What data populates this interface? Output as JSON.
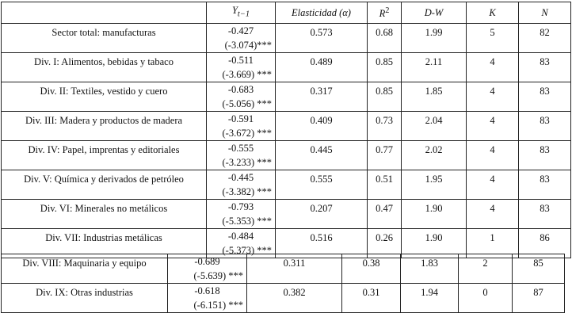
{
  "header": {
    "col0": "",
    "y_var": "Y",
    "y_sub": "t−1",
    "elasticity": "Elasticidad (α)",
    "r2_base": "R",
    "r2_sup": "2",
    "dw": "D-W",
    "k": "K",
    "n": "N"
  },
  "rows": [
    {
      "label": "Sector total: manufacturas",
      "coef": "-0.427",
      "t": "(-3.074)***",
      "elas": "0.573",
      "r2": "0.68",
      "dw": "1.99",
      "k": "5",
      "n": "82"
    },
    {
      "label": "Div. I: Alimentos, bebidas y tabaco",
      "coef": "-0.511",
      "t": "(-3.669) ***",
      "elas": "0.489",
      "r2": "0.85",
      "dw": "2.11",
      "k": "4",
      "n": "83"
    },
    {
      "label": "Div. II: Textiles, vestido y cuero",
      "coef": "-0.683",
      "t": "(-5.056) ***",
      "elas": "0.317",
      "r2": "0.85",
      "dw": "1.85",
      "k": "4",
      "n": "83"
    },
    {
      "label": "Div. III: Madera y productos de madera",
      "coef": "-0.591",
      "t": "(-3.672) ***",
      "elas": "0.409",
      "r2": "0.73",
      "dw": "2.04",
      "k": "4",
      "n": "83"
    },
    {
      "label": "Div. IV: Papel, imprentas y editoriales",
      "coef": "-0.555",
      "t": "(-3.233) ***",
      "elas": "0.445",
      "r2": "0.77",
      "dw": "2.02",
      "k": "4",
      "n": "83"
    },
    {
      "label": "Div. V: Química y derivados de petróleo",
      "coef": "-0.445",
      "t": "(-3.382) ***",
      "elas": "0.555",
      "r2": "0.51",
      "dw": "1.95",
      "k": "4",
      "n": "83"
    },
    {
      "label": "Div. VI: Minerales no metálicos",
      "coef": "-0.793",
      "t": "(-5.353) ***",
      "elas": "0.207",
      "r2": "0.47",
      "dw": "1.90",
      "k": "4",
      "n": "83"
    },
    {
      "label": "Div. VII: Industrias metálicas",
      "coef": "-0.484",
      "t": "(-5.373) ***",
      "elas": "0.516",
      "r2": "0.26",
      "dw": "1.90",
      "k": "1",
      "n": "86"
    }
  ],
  "extra_rows": [
    {
      "label": "Div. VIII: Maquinaria y equipo",
      "coef": "-0.689",
      "t": "(-5.639) ***",
      "elas": "0.311",
      "r2": "0.38",
      "dw": "1.83",
      "k": "2",
      "n": "85"
    },
    {
      "label": "Div. IX: Otras industrias",
      "coef": "-0.618",
      "t": "(-6.151) ***",
      "elas": "0.382",
      "r2": "0.31",
      "dw": "1.94",
      "k": "0",
      "n": "87"
    }
  ]
}
